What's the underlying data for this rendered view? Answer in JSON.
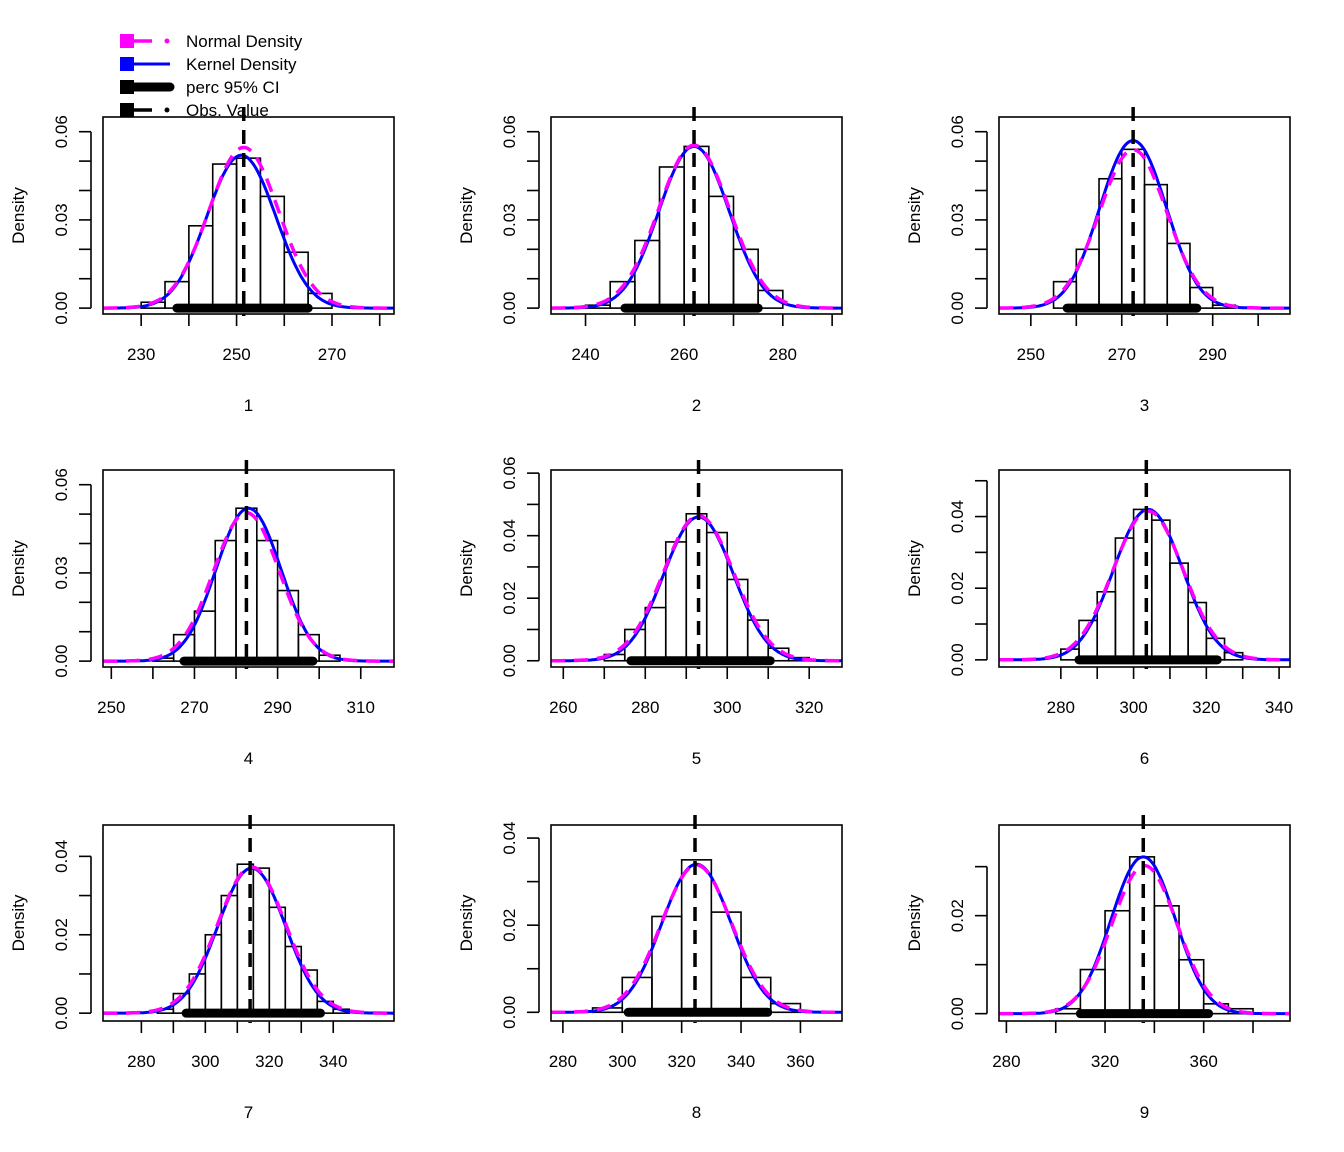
{
  "legend": {
    "entries": [
      {
        "label": "Normal Density",
        "color": "#FF00FF",
        "style": "dashed"
      },
      {
        "label": "Kernel Density",
        "color": "#0000FF",
        "style": "solid"
      },
      {
        "label": "perc 95% CI",
        "color": "#000000",
        "style": "thick"
      },
      {
        "label": "Obs. Value",
        "color": "#000000",
        "style": "dashed"
      }
    ],
    "placement": "top-left"
  },
  "chart_data": [
    {
      "type": "histogram-density",
      "title": "",
      "xlabel": "1",
      "ylabel": "Density",
      "xlim": [
        222,
        283
      ],
      "ylim": [
        -0.002,
        0.065
      ],
      "xticks": [
        230,
        240,
        250,
        260,
        270,
        280
      ],
      "xtick_labels": [
        "230",
        "250",
        "270"
      ],
      "yticks": [
        0,
        0.01,
        0.02,
        0.03,
        0.04,
        0.05,
        0.06
      ],
      "ytick_labels": [
        "0.00",
        "0.03",
        "0.06"
      ],
      "bins": {
        "start": 230,
        "width": 5,
        "densities": [
          0.002,
          0.009,
          0.028,
          0.049,
          0.051,
          0.038,
          0.019,
          0.005
        ]
      },
      "normal": {
        "mean": 251.5,
        "sd": 7.3
      },
      "kernel": {
        "peak_x": 251.0,
        "peak_y": 0.052
      },
      "obs_value": 251.5,
      "ci": [
        237.5,
        265
      ]
    },
    {
      "type": "histogram-density",
      "title": "",
      "xlabel": "2",
      "ylabel": "Density",
      "xlim": [
        233,
        292
      ],
      "ylim": [
        -0.002,
        0.065
      ],
      "xticks": [
        240,
        250,
        260,
        270,
        280,
        290
      ],
      "xtick_labels": [
        "240",
        "260",
        "280"
      ],
      "yticks": [
        0,
        0.01,
        0.02,
        0.03,
        0.04,
        0.05,
        0.06
      ],
      "ytick_labels": [
        "0.00",
        "0.03",
        "0.06"
      ],
      "bins": {
        "start": 240,
        "width": 5,
        "densities": [
          0.001,
          0.009,
          0.023,
          0.048,
          0.055,
          0.038,
          0.02,
          0.006
        ]
      },
      "normal": {
        "mean": 262.0,
        "sd": 7.2
      },
      "kernel": {
        "peak_x": 262.0,
        "peak_y": 0.055
      },
      "obs_value": 262.0,
      "ci": [
        248,
        275
      ]
    },
    {
      "type": "histogram-density",
      "title": "",
      "xlabel": "3",
      "ylabel": "Density",
      "xlim": [
        243,
        307
      ],
      "ylim": [
        -0.002,
        0.065
      ],
      "xticks": [
        250,
        260,
        270,
        280,
        290,
        300
      ],
      "xtick_labels": [
        "250",
        "270",
        "290"
      ],
      "yticks": [
        0,
        0.01,
        0.02,
        0.03,
        0.04,
        0.05,
        0.06
      ],
      "ytick_labels": [
        "0.00",
        "0.03",
        "0.06"
      ],
      "bins": {
        "start": 255,
        "width": 5,
        "densities": [
          0.009,
          0.02,
          0.044,
          0.054,
          0.042,
          0.022,
          0.007,
          0.001
        ]
      },
      "normal": {
        "mean": 272.5,
        "sd": 7.4
      },
      "kernel": {
        "peak_x": 272.5,
        "peak_y": 0.057
      },
      "obs_value": 272.5,
      "ci": [
        258,
        286.5
      ]
    },
    {
      "type": "histogram-density",
      "title": "",
      "xlabel": "4",
      "ylabel": "Density",
      "xlim": [
        248,
        318
      ],
      "ylim": [
        -0.002,
        0.065
      ],
      "xticks": [
        250,
        260,
        270,
        280,
        290,
        300,
        310
      ],
      "xtick_labels": [
        "250",
        "270",
        "290",
        "310"
      ],
      "yticks": [
        0,
        0.01,
        0.02,
        0.03,
        0.04,
        0.05,
        0.06
      ],
      "ytick_labels": [
        "0.00",
        "0.03",
        "0.06"
      ],
      "bins": {
        "start": 260,
        "width": 5,
        "densities": [
          0.001,
          0.009,
          0.017,
          0.041,
          0.052,
          0.041,
          0.024,
          0.009,
          0.002
        ]
      },
      "normal": {
        "mean": 282.5,
        "sd": 7.9
      },
      "kernel": {
        "peak_x": 283.0,
        "peak_y": 0.052
      },
      "obs_value": 282.5,
      "ci": [
        267.5,
        298.5
      ]
    },
    {
      "type": "histogram-density",
      "title": "",
      "xlabel": "5",
      "ylabel": "Density",
      "xlim": [
        257,
        328
      ],
      "ylim": [
        -0.002,
        0.061
      ],
      "xticks": [
        260,
        270,
        280,
        290,
        300,
        310,
        320
      ],
      "xtick_labels": [
        "260",
        "280",
        "300",
        "320"
      ],
      "yticks": [
        0,
        0.01,
        0.02,
        0.03,
        0.04,
        0.05,
        0.06
      ],
      "ytick_labels": [
        "0.00",
        "0.02",
        "0.04",
        "0.06"
      ],
      "bins": {
        "start": 270,
        "width": 5,
        "densities": [
          0.002,
          0.01,
          0.017,
          0.038,
          0.047,
          0.041,
          0.026,
          0.013,
          0.004,
          0.001
        ]
      },
      "normal": {
        "mean": 293.0,
        "sd": 8.6
      },
      "kernel": {
        "peak_x": 293.0,
        "peak_y": 0.046
      },
      "obs_value": 293.0,
      "ci": [
        276.5,
        310.5
      ]
    },
    {
      "type": "histogram-density",
      "title": "",
      "xlabel": "6",
      "ylabel": "Density",
      "xlim": [
        263,
        343
      ],
      "ylim": [
        -0.002,
        0.053
      ],
      "xticks": [
        280,
        290,
        300,
        310,
        320,
        330,
        340
      ],
      "xtick_labels": [
        "280",
        "300",
        "320",
        "340"
      ],
      "yticks": [
        0,
        0.01,
        0.02,
        0.03,
        0.04,
        0.05
      ],
      "ytick_labels": [
        "0.00",
        "0.02",
        "0.04"
      ],
      "bins": {
        "start": 280,
        "width": 5,
        "densities": [
          0.003,
          0.011,
          0.019,
          0.034,
          0.042,
          0.039,
          0.027,
          0.016,
          0.006,
          0.002
        ]
      },
      "normal": {
        "mean": 304.0,
        "sd": 9.6
      },
      "kernel": {
        "peak_x": 304.0,
        "peak_y": 0.042
      },
      "obs_value": 303.5,
      "ci": [
        285,
        323
      ]
    },
    {
      "type": "histogram-density",
      "title": "",
      "xlabel": "7",
      "ylabel": "Density",
      "xlim": [
        268,
        359
      ],
      "ylim": [
        -0.002,
        0.048
      ],
      "xticks": [
        280,
        290,
        300,
        310,
        320,
        330,
        340
      ],
      "xtick_labels": [
        "280",
        "300",
        "320",
        "340"
      ],
      "yticks": [
        0,
        0.01,
        0.02,
        0.03,
        0.04
      ],
      "ytick_labels": [
        "0.00",
        "0.02",
        "0.04"
      ],
      "bins": {
        "start": 285,
        "width": 5,
        "densities": [
          0.001,
          0.005,
          0.01,
          0.02,
          0.03,
          0.038,
          0.037,
          0.027,
          0.017,
          0.011,
          0.003,
          0.001
        ]
      },
      "normal": {
        "mean": 314.5,
        "sd": 10.7
      },
      "kernel": {
        "peak_x": 314.5,
        "peak_y": 0.037
      },
      "obs_value": 314.0,
      "ci": [
        294,
        336
      ]
    },
    {
      "type": "histogram-density",
      "title": "",
      "xlabel": "8",
      "ylabel": "Density",
      "xlim": [
        276,
        374
      ],
      "ylim": [
        -0.002,
        0.043
      ],
      "xticks": [
        280,
        300,
        320,
        340,
        360
      ],
      "xtick_labels": [
        "280",
        "300",
        "320",
        "340",
        "360"
      ],
      "yticks": [
        0,
        0.01,
        0.02,
        0.03,
        0.04
      ],
      "ytick_labels": [
        "0.00",
        "0.02",
        "0.04"
      ],
      "bins": {
        "start": 290,
        "width": 10,
        "densities": [
          0.001,
          0.008,
          0.022,
          0.035,
          0.023,
          0.008,
          0.002
        ]
      },
      "normal": {
        "mean": 325.0,
        "sd": 11.8
      },
      "kernel": {
        "peak_x": 325.0,
        "peak_y": 0.034
      },
      "obs_value": 324.5,
      "ci": [
        302,
        349
      ]
    },
    {
      "type": "histogram-density",
      "title": "",
      "xlabel": "9",
      "ylabel": "Density",
      "xlim": [
        277,
        395
      ],
      "ylim": [
        -0.0015,
        0.0385
      ],
      "xticks": [
        280,
        300,
        320,
        340,
        360,
        380
      ],
      "xtick_labels": [
        "280",
        "320",
        "360"
      ],
      "yticks": [
        0,
        0.01,
        0.02,
        0.03
      ],
      "ytick_labels": [
        "0.00",
        "0.02"
      ],
      "bins": {
        "start": 300,
        "width": 10,
        "densities": [
          0.001,
          0.009,
          0.021,
          0.032,
          0.022,
          0.011,
          0.002,
          0.001
        ]
      },
      "normal": {
        "mean": 336.0,
        "sd": 13.2
      },
      "kernel": {
        "peak_x": 335.5,
        "peak_y": 0.032
      },
      "obs_value": 335.5,
      "ci": [
        310,
        362
      ]
    }
  ]
}
